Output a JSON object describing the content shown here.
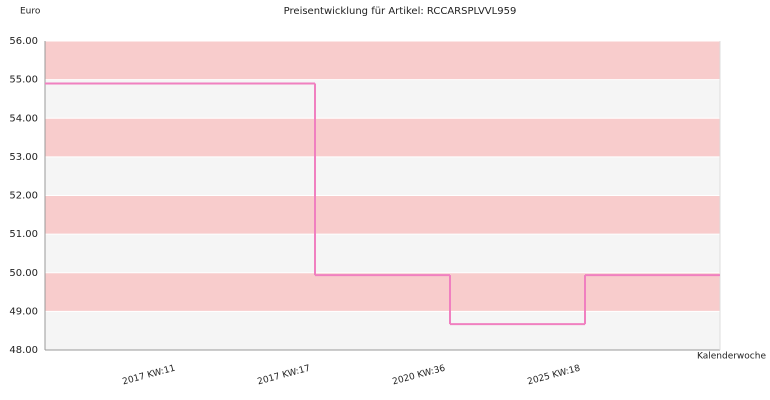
{
  "chart_data": {
    "type": "step",
    "title": "Preisentwicklung für Artikel: RCCARSPLVVL959",
    "y_label": "Euro",
    "x_label": "Kalenderwoche",
    "categories": [
      null,
      "2017 KW:11",
      "2017 KW:17",
      "2020 KW:36",
      "2025 KW:18"
    ],
    "values": [
      54.9,
      54.9,
      49.94,
      48.67,
      49.94
    ],
    "color": "#f080c0",
    "band_colors": [
      "#f8cccc",
      "#f5f5f5"
    ],
    "ylim": [
      48,
      56
    ],
    "yticks": [
      {
        "value": 48,
        "label": "48.00"
      },
      {
        "value": 49,
        "label": "49.00"
      },
      {
        "value": 50,
        "label": "50.00"
      },
      {
        "value": 51,
        "label": "51.00"
      },
      {
        "value": 52,
        "label": "52.00"
      },
      {
        "value": 53,
        "label": "53.00"
      },
      {
        "value": 54,
        "label": "54.00"
      },
      {
        "value": 55,
        "label": "55.00"
      },
      {
        "value": 56,
        "label": "56.00"
      }
    ]
  }
}
